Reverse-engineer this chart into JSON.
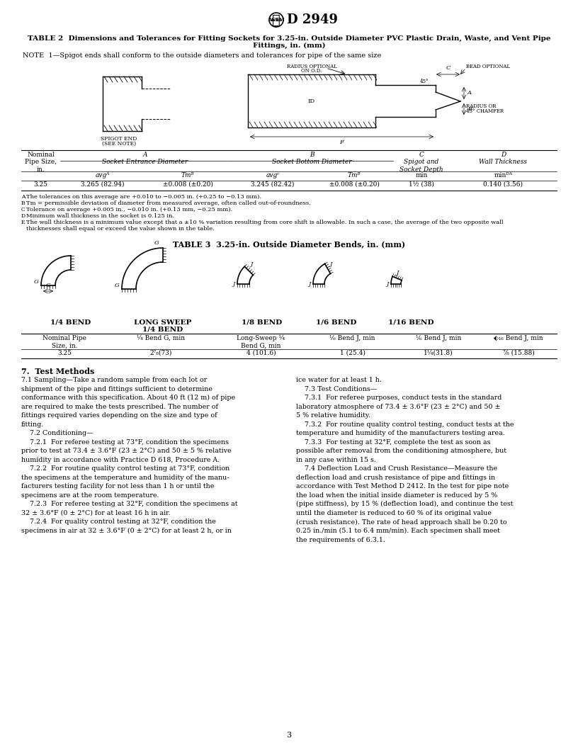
{
  "page_number": "3",
  "header_logo_text": "D 2949",
  "table2_title_line1": "TABLE 2  Dimensions and Tolerances for Fitting Sockets for 3.25-in. Outside Diameter PVC Plastic Drain, Waste, and Vent Pipe",
  "table2_title_line2": "Fittings, in. (mm)",
  "table2_note": "NOTE  1—Spigot ends shall conform to the outside diameters and tolerances for pipe of the same size",
  "table2_data": [
    [
      "3.25",
      "3.265 (82.94)",
      "±0.008 (±0.20)",
      "3.245 (82.42)",
      "±0.008 (±0.20)",
      "1½ (38)",
      "0.140 (3.56)"
    ]
  ],
  "table3_title": "TABLE 3  3.25-in. Outside Diameter Bends, in. (mm)",
  "table3_data": [
    [
      "3.25",
      "2⁷₈(73)",
      "4 (101.6)",
      "1 (25.4)",
      "1¼(31.8)",
      "⅞ (15.88)"
    ]
  ],
  "bg_color": "#ffffff",
  "text_color": "#000000"
}
